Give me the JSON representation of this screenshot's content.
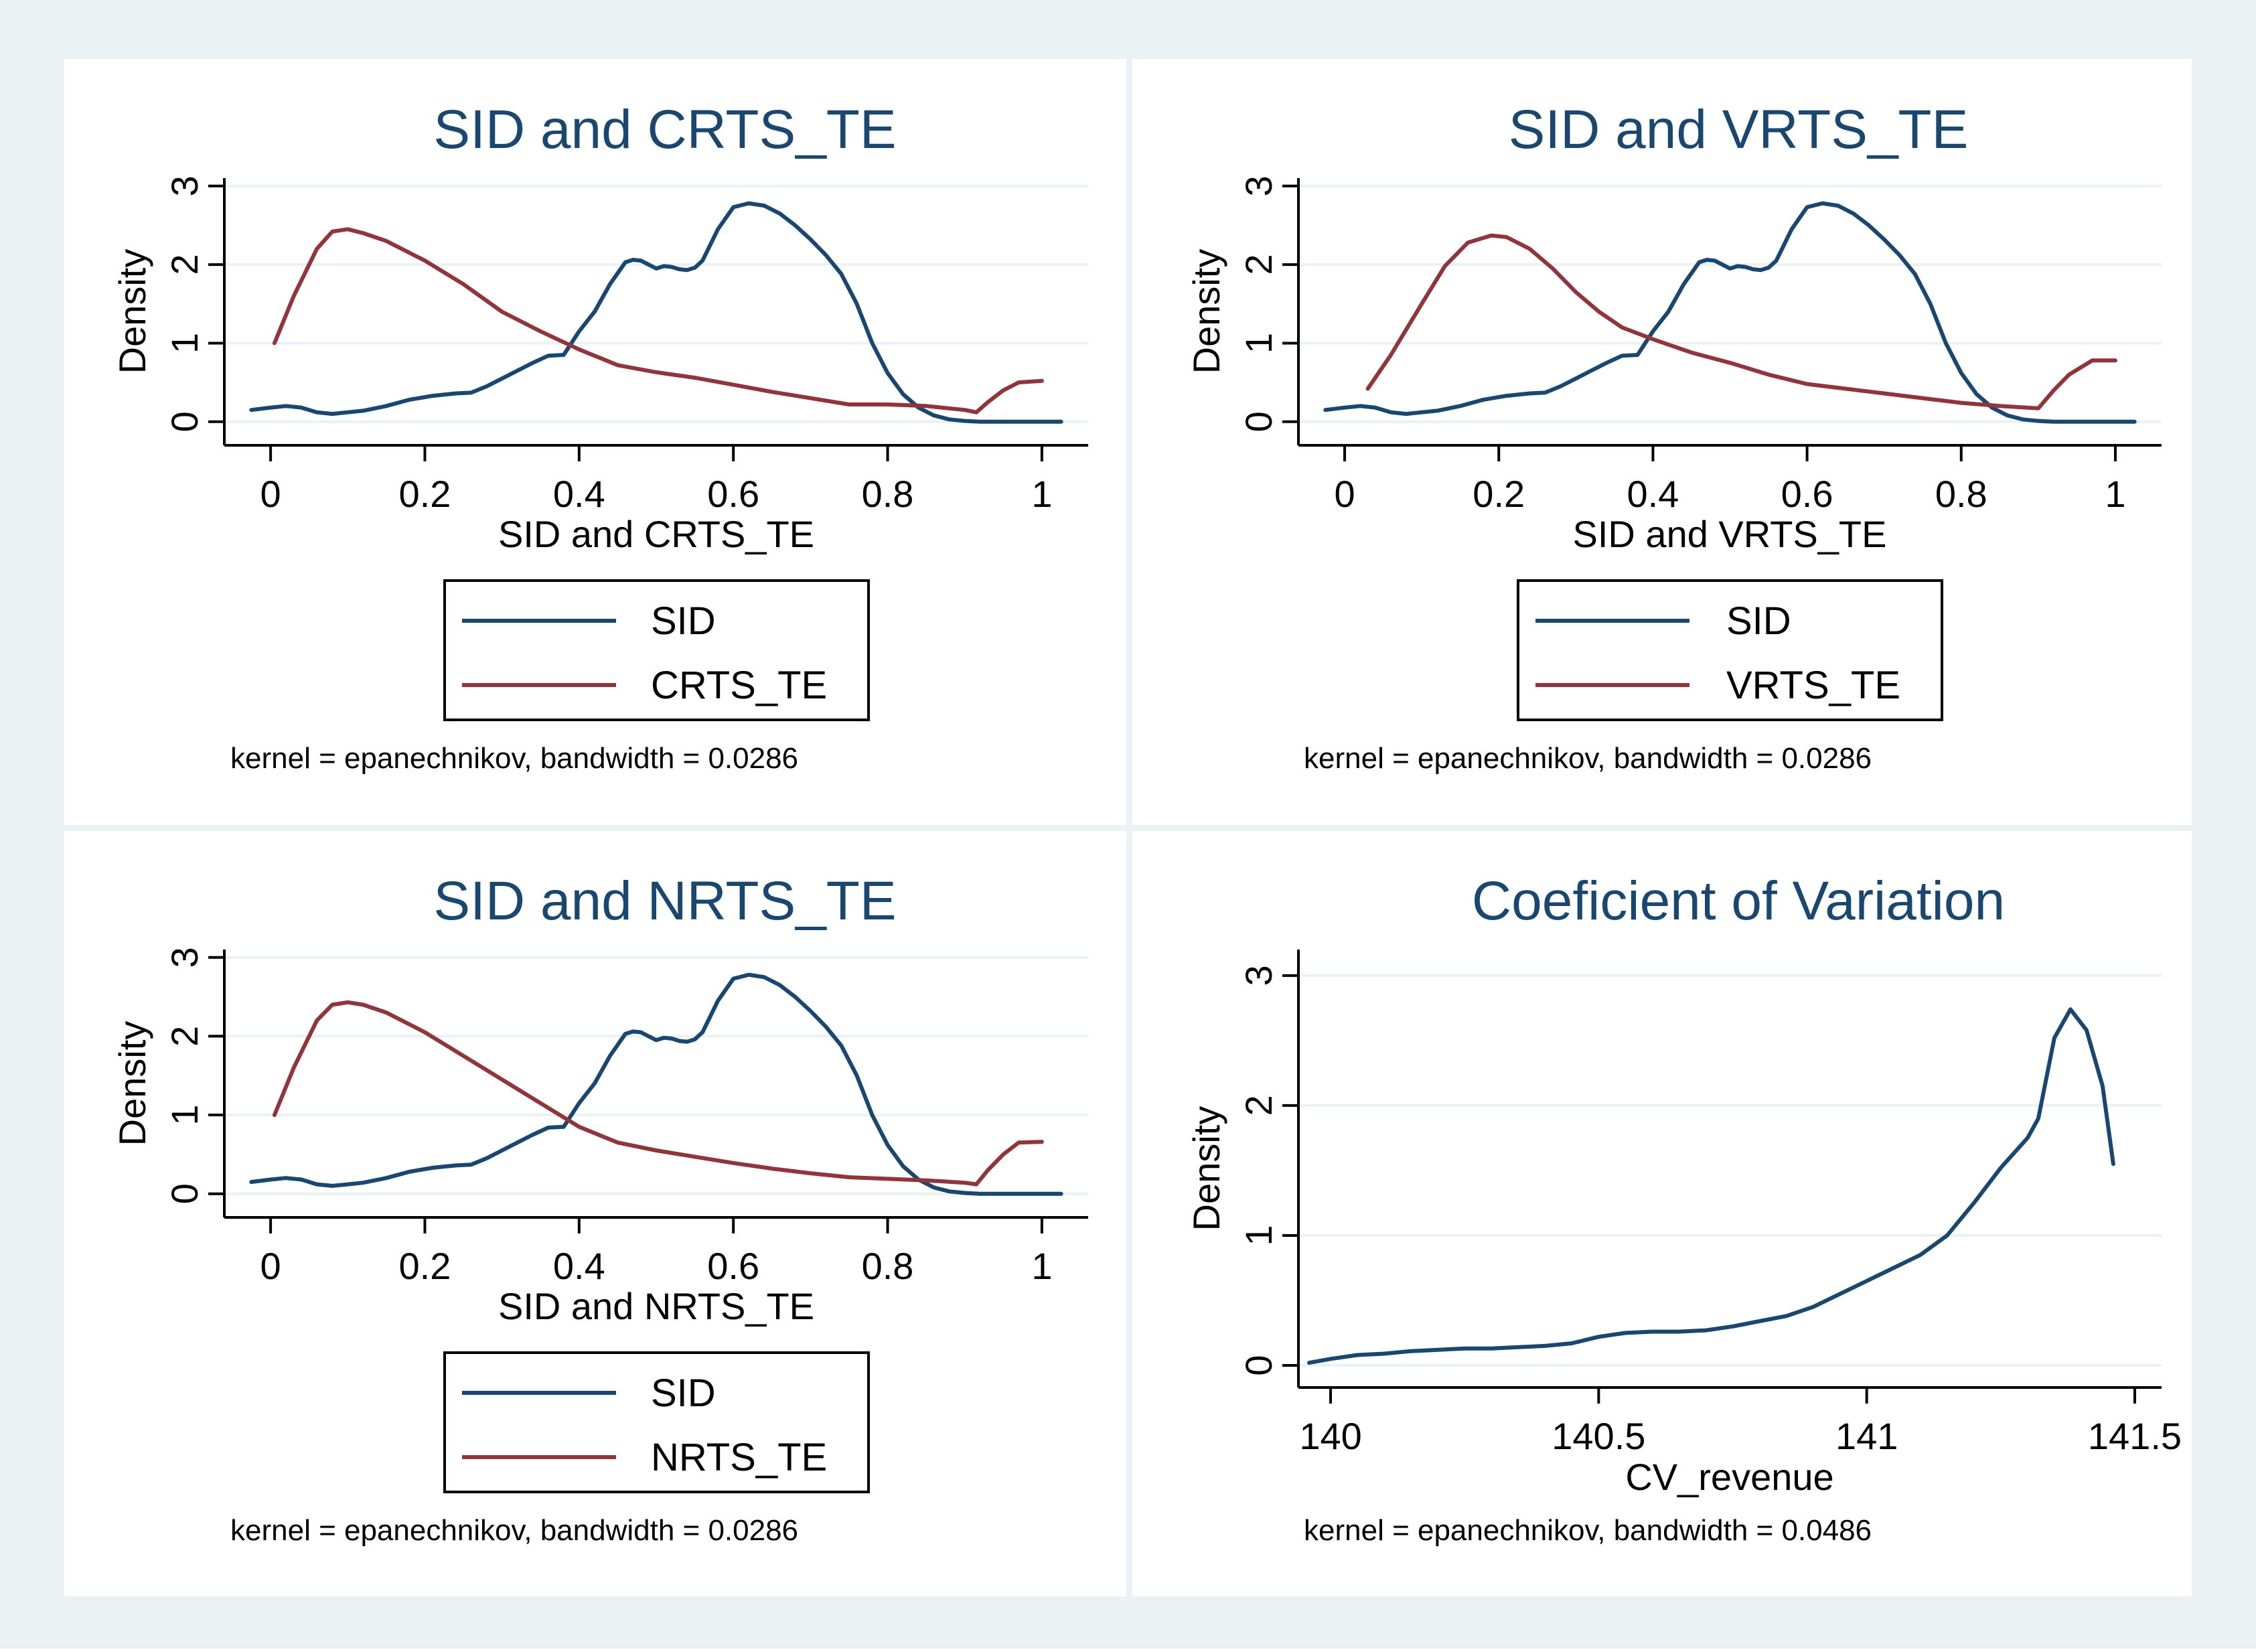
{
  "figure": {
    "background": "#eaf2f3",
    "panel_background": "#ffffff",
    "axis_color": "#000000",
    "grid_color": "#eaf2f3"
  },
  "colors": {
    "sid": "#1a476f",
    "te": "#90353b",
    "title": "#1a476f"
  },
  "chart_data": [
    {
      "type": "line",
      "title": "SID and CRTS_TE",
      "xlabel": "SID and CRTS_TE",
      "ylabel": "Density",
      "xticks": [
        "0",
        "0.2",
        "0.4",
        "0.6",
        "0.8",
        "1"
      ],
      "xtick_values": [
        0,
        0.2,
        0.4,
        0.6,
        0.8,
        1
      ],
      "yticks": [
        "0",
        "1",
        "2",
        "3"
      ],
      "ytick_values": [
        0,
        1,
        2,
        3
      ],
      "xlim": [
        -0.06,
        1.06
      ],
      "ylim": [
        -0.3,
        3.1
      ],
      "grid": true,
      "legend_position": "bottom",
      "note": "kernel = epanechnikov, bandwidth = 0.0286",
      "series": [
        {
          "name": "SID",
          "color": "#1a476f",
          "x": [
            -0.025,
            0.0,
            0.02,
            0.04,
            0.06,
            0.08,
            0.1,
            0.12,
            0.15,
            0.18,
            0.21,
            0.24,
            0.26,
            0.28,
            0.3,
            0.32,
            0.34,
            0.36,
            0.38,
            0.4,
            0.42,
            0.44,
            0.46,
            0.47,
            0.48,
            0.49,
            0.5,
            0.51,
            0.52,
            0.53,
            0.54,
            0.55,
            0.56,
            0.58,
            0.6,
            0.62,
            0.64,
            0.66,
            0.68,
            0.7,
            0.72,
            0.74,
            0.76,
            0.78,
            0.8,
            0.82,
            0.84,
            0.86,
            0.88,
            0.9,
            0.92,
            0.95,
            1.0,
            1.025
          ],
          "y": [
            0.15,
            0.18,
            0.2,
            0.18,
            0.12,
            0.1,
            0.12,
            0.14,
            0.2,
            0.28,
            0.33,
            0.36,
            0.37,
            0.45,
            0.55,
            0.65,
            0.75,
            0.84,
            0.85,
            1.15,
            1.4,
            1.75,
            2.03,
            2.06,
            2.05,
            2.0,
            1.95,
            1.98,
            1.97,
            1.94,
            1.93,
            1.96,
            2.05,
            2.45,
            2.73,
            2.78,
            2.75,
            2.65,
            2.5,
            2.32,
            2.12,
            1.88,
            1.5,
            1.0,
            0.62,
            0.35,
            0.18,
            0.08,
            0.03,
            0.01,
            0.0,
            0.0,
            0.0,
            0.0
          ]
        },
        {
          "name": "CRTS_TE",
          "color": "#90353b",
          "x": [
            0.005,
            0.03,
            0.06,
            0.08,
            0.1,
            0.12,
            0.15,
            0.2,
            0.25,
            0.3,
            0.35,
            0.4,
            0.45,
            0.5,
            0.55,
            0.6,
            0.65,
            0.7,
            0.75,
            0.8,
            0.85,
            0.9,
            0.915,
            0.93,
            0.95,
            0.97,
            1.0
          ],
          "y": [
            1.0,
            1.6,
            2.2,
            2.42,
            2.45,
            2.4,
            2.3,
            2.05,
            1.75,
            1.4,
            1.15,
            0.92,
            0.72,
            0.63,
            0.56,
            0.47,
            0.38,
            0.3,
            0.22,
            0.22,
            0.2,
            0.15,
            0.12,
            0.25,
            0.4,
            0.5,
            0.52
          ]
        }
      ]
    },
    {
      "type": "line",
      "title": "SID and VRTS_TE",
      "xlabel": "SID and VRTS_TE",
      "ylabel": "Density",
      "xticks": [
        "0",
        "0.2",
        "0.4",
        "0.6",
        "0.8",
        "1"
      ],
      "xtick_values": [
        0,
        0.2,
        0.4,
        0.6,
        0.8,
        1
      ],
      "yticks": [
        "0",
        "1",
        "2",
        "3"
      ],
      "ytick_values": [
        0,
        1,
        2,
        3
      ],
      "xlim": [
        -0.06,
        1.06
      ],
      "ylim": [
        -0.3,
        3.1
      ],
      "grid": true,
      "legend_position": "bottom",
      "note": "kernel = epanechnikov, bandwidth = 0.0286",
      "series": [
        {
          "name": "SID",
          "color": "#1a476f",
          "x": [
            -0.025,
            0.0,
            0.02,
            0.04,
            0.06,
            0.08,
            0.1,
            0.12,
            0.15,
            0.18,
            0.21,
            0.24,
            0.26,
            0.28,
            0.3,
            0.32,
            0.34,
            0.36,
            0.38,
            0.4,
            0.42,
            0.44,
            0.46,
            0.47,
            0.48,
            0.49,
            0.5,
            0.51,
            0.52,
            0.53,
            0.54,
            0.55,
            0.56,
            0.58,
            0.6,
            0.62,
            0.64,
            0.66,
            0.68,
            0.7,
            0.72,
            0.74,
            0.76,
            0.78,
            0.8,
            0.82,
            0.84,
            0.86,
            0.88,
            0.9,
            0.92,
            0.95,
            1.0,
            1.025
          ],
          "y": [
            0.15,
            0.18,
            0.2,
            0.18,
            0.12,
            0.1,
            0.12,
            0.14,
            0.2,
            0.28,
            0.33,
            0.36,
            0.37,
            0.45,
            0.55,
            0.65,
            0.75,
            0.84,
            0.85,
            1.15,
            1.4,
            1.75,
            2.03,
            2.06,
            2.05,
            2.0,
            1.95,
            1.98,
            1.97,
            1.94,
            1.93,
            1.96,
            2.05,
            2.45,
            2.73,
            2.78,
            2.75,
            2.65,
            2.5,
            2.32,
            2.12,
            1.88,
            1.5,
            1.0,
            0.62,
            0.35,
            0.18,
            0.08,
            0.03,
            0.01,
            0.0,
            0.0,
            0.0,
            0.0
          ]
        },
        {
          "name": "VRTS_TE",
          "color": "#90353b",
          "x": [
            0.03,
            0.06,
            0.1,
            0.13,
            0.16,
            0.19,
            0.21,
            0.24,
            0.27,
            0.3,
            0.33,
            0.36,
            0.4,
            0.45,
            0.5,
            0.55,
            0.6,
            0.65,
            0.7,
            0.75,
            0.8,
            0.85,
            0.9,
            0.92,
            0.94,
            0.97,
            1.0
          ],
          "y": [
            0.42,
            0.85,
            1.5,
            1.98,
            2.28,
            2.37,
            2.35,
            2.2,
            1.95,
            1.65,
            1.4,
            1.2,
            1.05,
            0.88,
            0.75,
            0.6,
            0.48,
            0.42,
            0.36,
            0.3,
            0.24,
            0.2,
            0.17,
            0.4,
            0.6,
            0.78,
            0.78
          ]
        }
      ]
    },
    {
      "type": "line",
      "title": "SID and NRTS_TE",
      "xlabel": "SID and NRTS_TE",
      "ylabel": "Density",
      "xticks": [
        "0",
        "0.2",
        "0.4",
        "0.6",
        "0.8",
        "1"
      ],
      "xtick_values": [
        0,
        0.2,
        0.4,
        0.6,
        0.8,
        1
      ],
      "yticks": [
        "0",
        "1",
        "2",
        "3"
      ],
      "ytick_values": [
        0,
        1,
        2,
        3
      ],
      "xlim": [
        -0.06,
        1.06
      ],
      "ylim": [
        -0.3,
        3.1
      ],
      "grid": true,
      "legend_position": "bottom",
      "note": "kernel = epanechnikov, bandwidth = 0.0286",
      "series": [
        {
          "name": "SID",
          "color": "#1a476f",
          "x": [
            -0.025,
            0.0,
            0.02,
            0.04,
            0.06,
            0.08,
            0.1,
            0.12,
            0.15,
            0.18,
            0.21,
            0.24,
            0.26,
            0.28,
            0.3,
            0.32,
            0.34,
            0.36,
            0.38,
            0.4,
            0.42,
            0.44,
            0.46,
            0.47,
            0.48,
            0.49,
            0.5,
            0.51,
            0.52,
            0.53,
            0.54,
            0.55,
            0.56,
            0.58,
            0.6,
            0.62,
            0.64,
            0.66,
            0.68,
            0.7,
            0.72,
            0.74,
            0.76,
            0.78,
            0.8,
            0.82,
            0.84,
            0.86,
            0.88,
            0.9,
            0.92,
            0.95,
            1.0,
            1.025
          ],
          "y": [
            0.15,
            0.18,
            0.2,
            0.18,
            0.12,
            0.1,
            0.12,
            0.14,
            0.2,
            0.28,
            0.33,
            0.36,
            0.37,
            0.45,
            0.55,
            0.65,
            0.75,
            0.84,
            0.85,
            1.15,
            1.4,
            1.75,
            2.03,
            2.06,
            2.05,
            2.0,
            1.95,
            1.98,
            1.97,
            1.94,
            1.93,
            1.96,
            2.05,
            2.45,
            2.73,
            2.78,
            2.75,
            2.65,
            2.5,
            2.32,
            2.12,
            1.88,
            1.5,
            1.0,
            0.62,
            0.35,
            0.18,
            0.08,
            0.03,
            0.01,
            0.0,
            0.0,
            0.0,
            0.0
          ]
        },
        {
          "name": "NRTS_TE",
          "color": "#90353b",
          "x": [
            0.005,
            0.03,
            0.06,
            0.08,
            0.1,
            0.12,
            0.15,
            0.2,
            0.25,
            0.3,
            0.35,
            0.4,
            0.45,
            0.5,
            0.55,
            0.6,
            0.65,
            0.7,
            0.75,
            0.8,
            0.85,
            0.9,
            0.915,
            0.93,
            0.95,
            0.97,
            1.0
          ],
          "y": [
            1.0,
            1.6,
            2.2,
            2.4,
            2.43,
            2.4,
            2.3,
            2.05,
            1.75,
            1.45,
            1.15,
            0.85,
            0.65,
            0.55,
            0.47,
            0.39,
            0.32,
            0.26,
            0.21,
            0.19,
            0.17,
            0.14,
            0.12,
            0.3,
            0.5,
            0.65,
            0.66
          ]
        }
      ]
    },
    {
      "type": "line",
      "title": "Coeficient of Variation",
      "xlabel": "CV_revenue",
      "ylabel": "Density",
      "xticks": [
        "140",
        "140.5",
        "141",
        "141.5"
      ],
      "xtick_values": [
        140,
        140.5,
        141,
        141.5
      ],
      "yticks": [
        "0",
        "1",
        "2",
        "3"
      ],
      "ytick_values": [
        0,
        1,
        2,
        3
      ],
      "xlim": [
        139.94,
        141.55
      ],
      "ylim": [
        -0.17,
        3.2
      ],
      "grid": true,
      "legend_position": "none",
      "note": "kernel = epanechnikov, bandwidth = 0.0486",
      "series": [
        {
          "name": "CV_revenue",
          "color": "#1a476f",
          "x": [
            139.96,
            140.0,
            140.05,
            140.1,
            140.15,
            140.2,
            140.25,
            140.3,
            140.35,
            140.4,
            140.45,
            140.5,
            140.55,
            140.6,
            140.65,
            140.7,
            140.75,
            140.8,
            140.85,
            140.9,
            140.95,
            141.0,
            141.05,
            141.1,
            141.15,
            141.2,
            141.25,
            141.3,
            141.32,
            141.35,
            141.38,
            141.41,
            141.44,
            141.46
          ],
          "y": [
            0.02,
            0.05,
            0.08,
            0.09,
            0.11,
            0.12,
            0.13,
            0.13,
            0.14,
            0.15,
            0.17,
            0.22,
            0.25,
            0.26,
            0.26,
            0.27,
            0.3,
            0.34,
            0.38,
            0.45,
            0.55,
            0.65,
            0.75,
            0.85,
            1.0,
            1.25,
            1.52,
            1.75,
            1.9,
            2.52,
            2.74,
            2.58,
            2.15,
            1.55
          ]
        }
      ]
    }
  ]
}
